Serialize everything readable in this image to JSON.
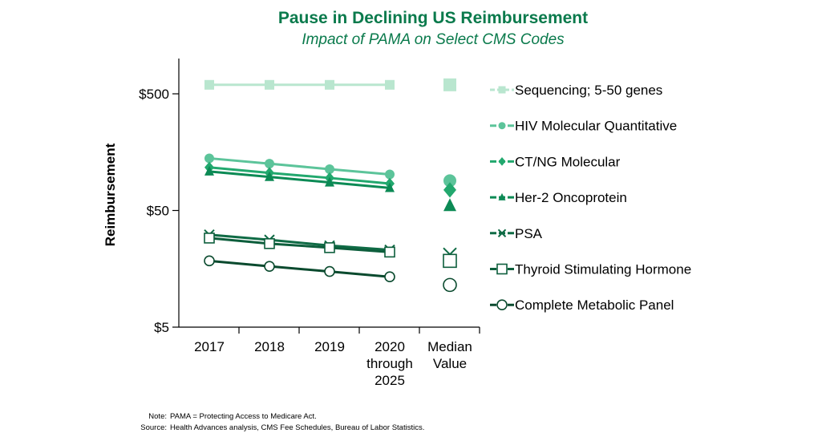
{
  "chart_data": {
    "type": "line",
    "title": "Pause in Declining US Reimbursement",
    "subtitle": "Impact of PAMA on Select CMS Codes",
    "ylabel": "Reimbursement",
    "xlabel": "",
    "yscale": "log",
    "ylim": [
      5,
      1000
    ],
    "yticks": [
      {
        "value": 500,
        "label": "$500"
      },
      {
        "value": 50,
        "label": "$50"
      },
      {
        "value": 5,
        "label": "$5"
      }
    ],
    "categories": [
      [
        "2017"
      ],
      [
        "2018"
      ],
      [
        "2019"
      ],
      [
        "2020",
        "through",
        "2025"
      ]
    ],
    "median_label": [
      "Median",
      "Value"
    ],
    "series": [
      {
        "name": "Sequencing; 5-50 genes",
        "marker": "square",
        "color": "#b9e6cf",
        "values": [
          597,
          597,
          597,
          597
        ],
        "median": 597
      },
      {
        "name": "HIV Molecular Quantitative",
        "marker": "circle",
        "color": "#5cc49a",
        "values": [
          140,
          126,
          113,
          102
        ],
        "median": 90
      },
      {
        "name": "CT/NG Molecular",
        "marker": "diamond",
        "color": "#22a86e",
        "values": [
          117,
          105,
          95,
          85
        ],
        "median": 75
      },
      {
        "name": "Her-2 Oncoprotein",
        "marker": "triangle",
        "color": "#0c8a55",
        "values": [
          108,
          97,
          87,
          78
        ],
        "median": 55
      },
      {
        "name": "PSA",
        "marker": "x",
        "color": "#0f6b45",
        "values": [
          31,
          28,
          25,
          23
        ],
        "median": 21
      },
      {
        "name": "Thyroid Stimulating Hormone",
        "marker": "open-square",
        "color": "#0d5e3c",
        "values": [
          29,
          26,
          24,
          22
        ],
        "median": 18.5
      },
      {
        "name": "Complete Metabolic Panel",
        "marker": "open-circle",
        "color": "#0a4a2e",
        "values": [
          18.5,
          16.6,
          15,
          13.5
        ],
        "median": 11.5
      }
    ],
    "legend_position": "right"
  },
  "notes": {
    "note_label": "Note:",
    "note_text": "PAMA = Protecting Access to Medicare Act.",
    "source_label": "Source:",
    "source_text": "Health Advances analysis, CMS Fee Schedules, Bureau of Labor Statistics."
  }
}
